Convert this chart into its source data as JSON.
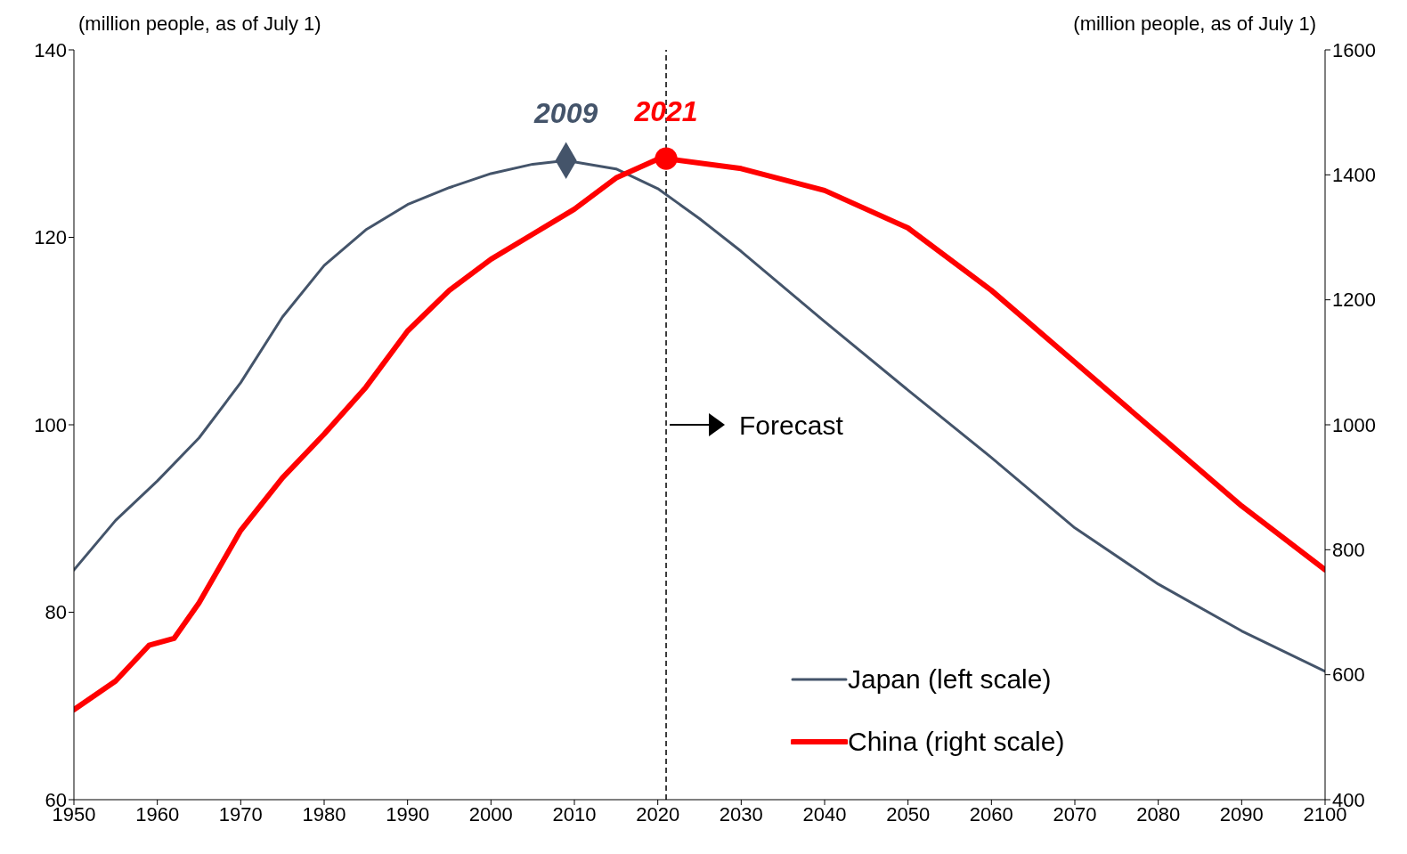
{
  "chart_data": {
    "type": "line",
    "ylabel": "(million people, as of July 1)",
    "y2label": "(million people, as of July 1)",
    "xlim": [
      1950,
      2100
    ],
    "xticks": [
      1950,
      1960,
      1970,
      1980,
      1990,
      2000,
      2010,
      2020,
      2030,
      2040,
      2050,
      2060,
      2070,
      2080,
      2090,
      2100
    ],
    "ylim": [
      60,
      140
    ],
    "yticks": [
      60,
      80,
      100,
      120,
      140
    ],
    "y2lim": [
      400,
      1600
    ],
    "y2ticks": [
      400,
      600,
      800,
      1000,
      1200,
      1400,
      1600
    ],
    "legend": "bottom right",
    "line_style": "solid",
    "marker": "none",
    "series": [
      {
        "name": "Japan (left scale)",
        "color": "#44546a",
        "x": [
          1950,
          1955,
          1960,
          1965,
          1970,
          1975,
          1980,
          1985,
          1990,
          1995,
          2000,
          2005,
          2009,
          2015,
          2020,
          2025,
          2030,
          2040,
          2050,
          2060,
          2070,
          2080,
          2090,
          2100
        ],
        "values": [
          84.5,
          89.8,
          94,
          98.6,
          104.5,
          111.5,
          117,
          120.8,
          123.5,
          125.3,
          126.8,
          127.8,
          128.2,
          127.3,
          125.2,
          122,
          118.5,
          111,
          103.7,
          96.5,
          89,
          83,
          78,
          73.7
        ]
      },
      {
        "name": "China (right scale)",
        "color": "#ff0000",
        "axis": "y2",
        "x": [
          1950,
          1955,
          1959,
          1962,
          1965,
          1970,
          1975,
          1980,
          1985,
          1990,
          1995,
          2000,
          2005,
          2010,
          2015,
          2020,
          2021,
          2030,
          2040,
          2050,
          2060,
          2070,
          2080,
          2090,
          2100
        ],
        "values": [
          544,
          590,
          647,
          658,
          715,
          831,
          915,
          985,
          1060,
          1150,
          1215,
          1265,
          1305,
          1345,
          1395,
          1425,
          1426,
          1410,
          1375,
          1315,
          1215,
          1100,
          985,
          870,
          768
        ]
      },
      {
        "type": "scatter",
        "marker": "diamond",
        "color": "#44546a",
        "x": [
          2009
        ],
        "values": [
          128.2
        ]
      },
      {
        "type": "scatter",
        "marker": "circle",
        "color": "#ff0000",
        "axis": "y2",
        "x": [
          2021
        ],
        "values": [
          1426
        ]
      }
    ],
    "annotations": [
      {
        "text": "2009",
        "x": 2009,
        "y": 128.2
      },
      {
        "text": "2021",
        "x": 2021,
        "y": 128.4
      }
    ],
    "ref_lines": [
      {
        "axis": "x",
        "value": 2021,
        "label": "Forecast",
        "line_style": "dashed",
        "color": "#000000"
      }
    ]
  }
}
